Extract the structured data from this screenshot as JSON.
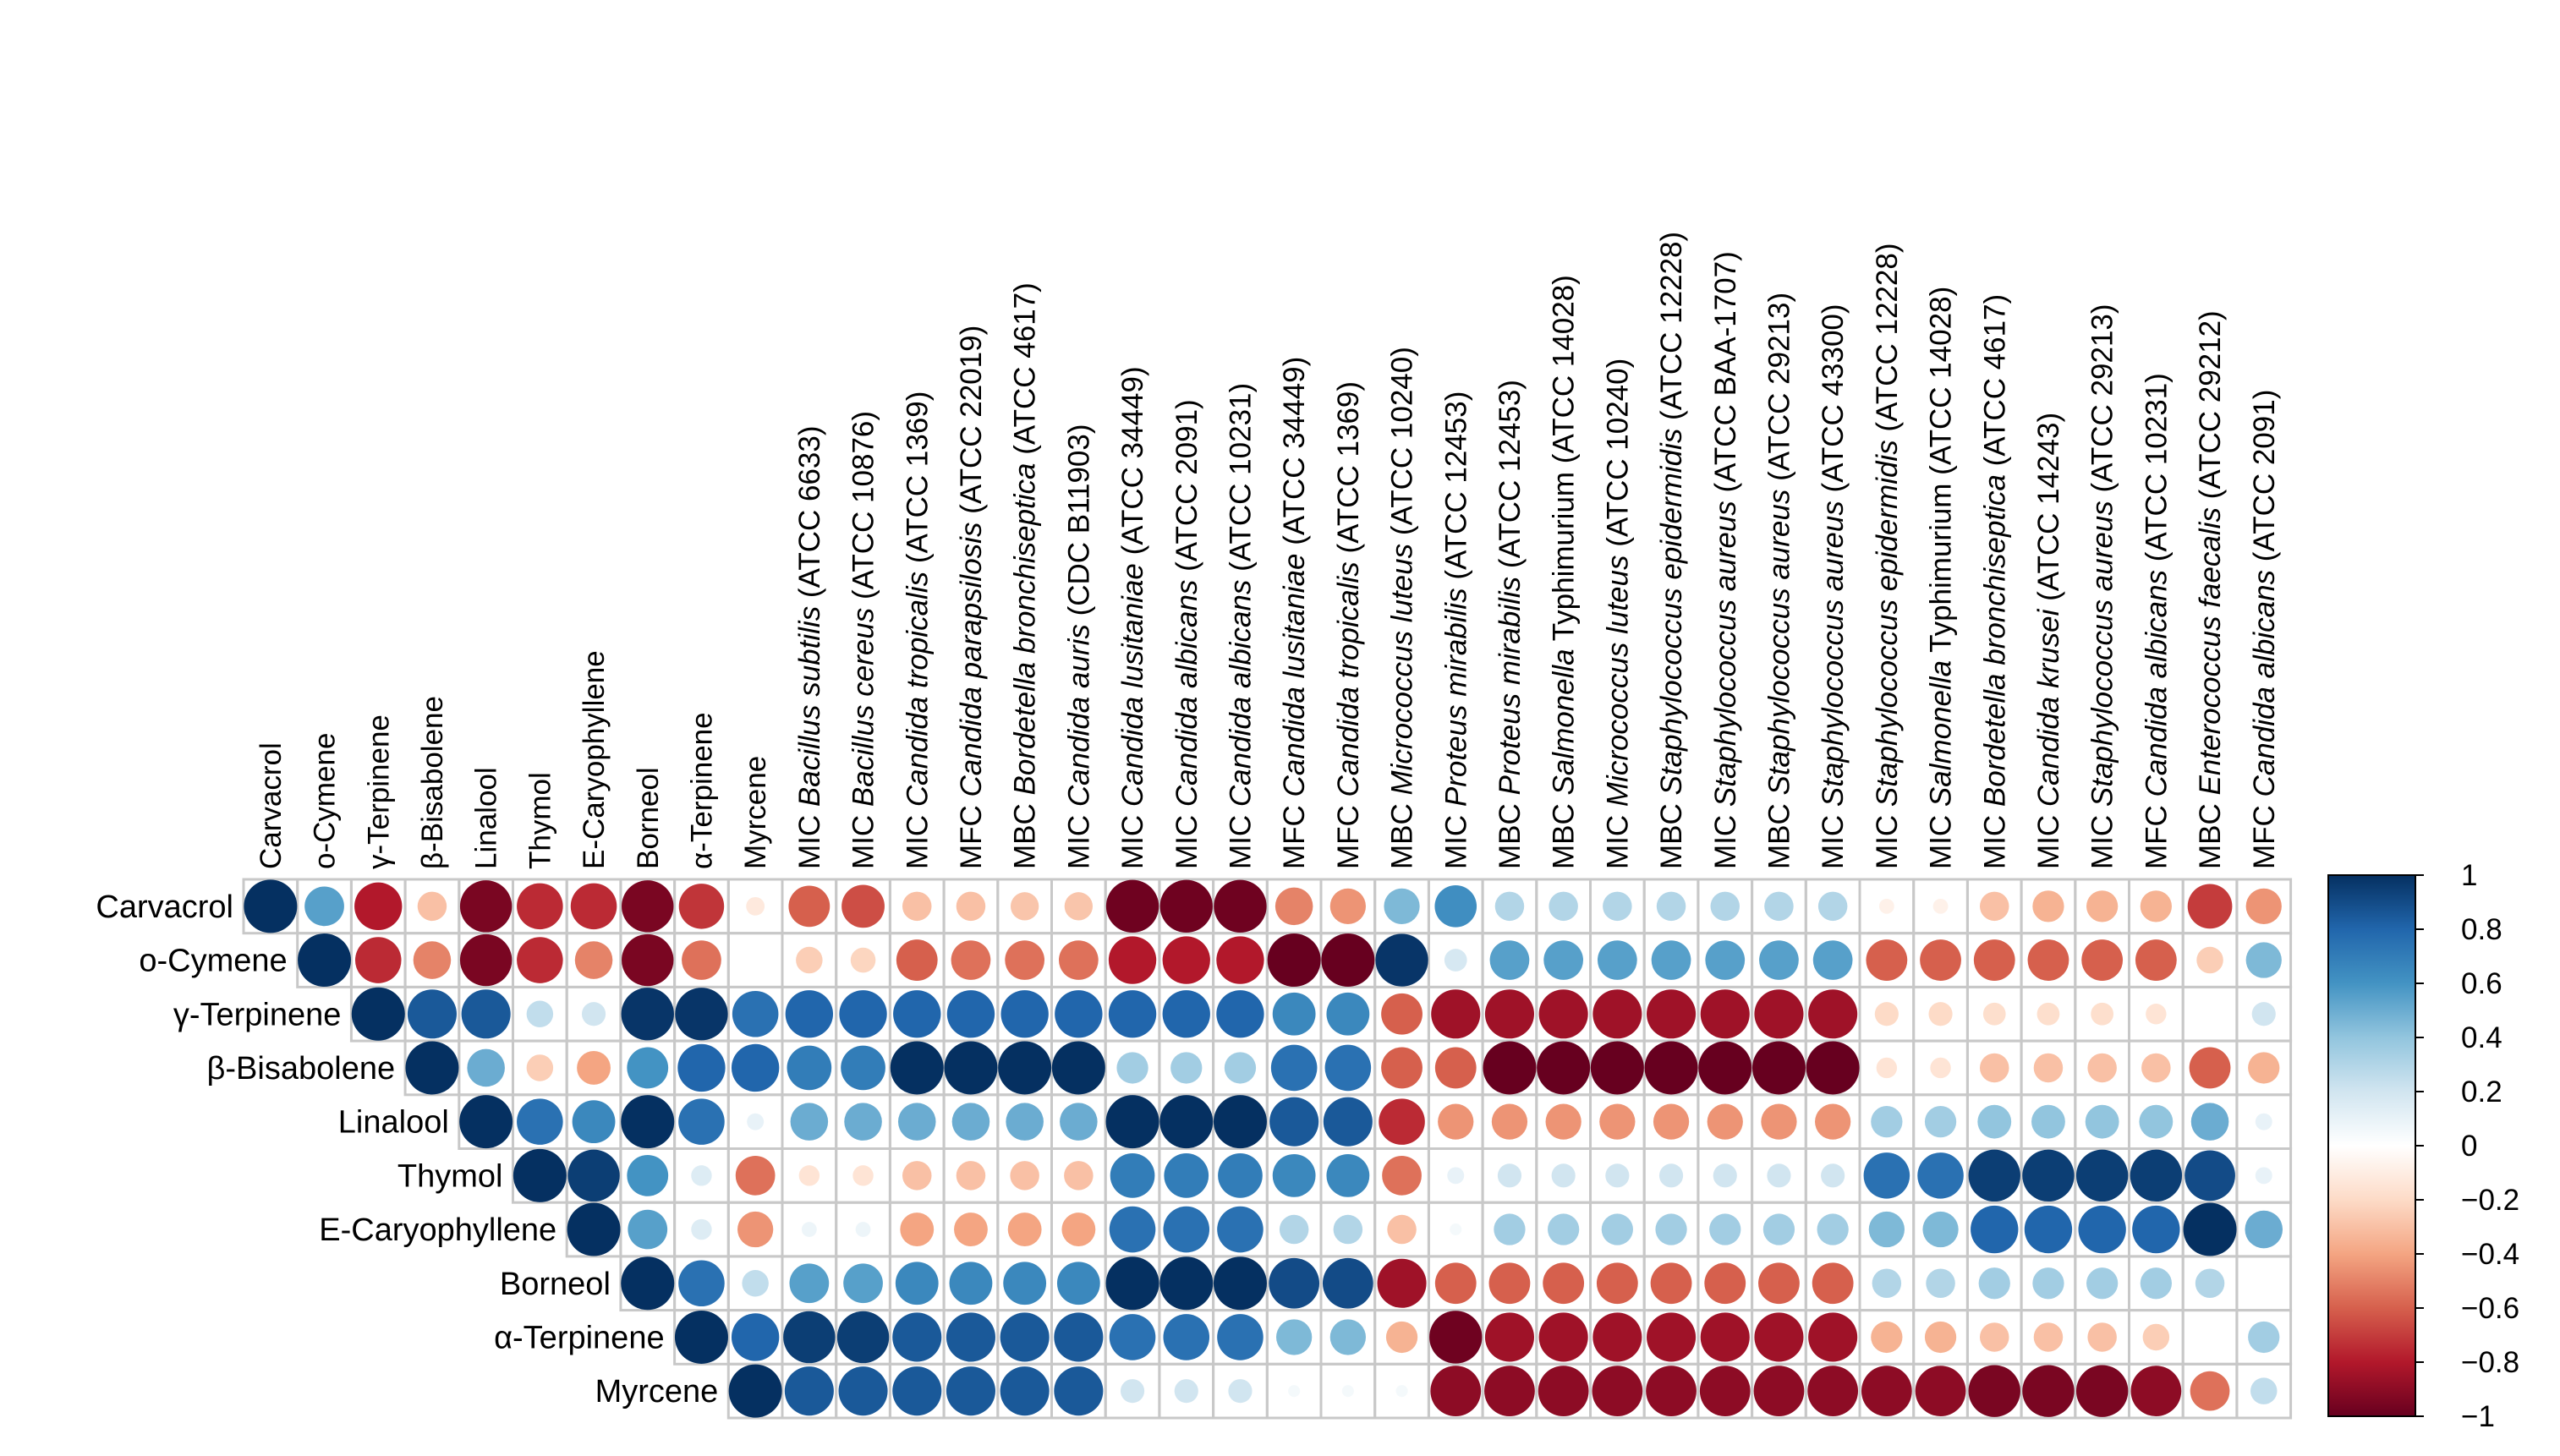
{
  "chart_data": {
    "type": "heatmap",
    "subtype": "correlation-circles",
    "title": "",
    "rows": [
      "Carvacrol",
      "o-Cymene",
      "γ-Terpinene",
      "β-Bisabolene",
      "Linalool",
      "Thymol",
      "E-Caryophyllene",
      "Borneol",
      "α-Terpinene",
      "Myrcene"
    ],
    "columns": [
      [
        {
          "t": "Carvacrol"
        }
      ],
      [
        {
          "t": "o-Cymene"
        }
      ],
      [
        {
          "t": "γ-Terpinene"
        }
      ],
      [
        {
          "t": "β-Bisabolene"
        }
      ],
      [
        {
          "t": "Linalool"
        }
      ],
      [
        {
          "t": "Thymol"
        }
      ],
      [
        {
          "t": "E-Caryophyllene"
        }
      ],
      [
        {
          "t": "Borneol"
        }
      ],
      [
        {
          "t": "α-Terpinene"
        }
      ],
      [
        {
          "t": "Myrcene"
        }
      ],
      [
        {
          "t": "MIC "
        },
        {
          "t": "Bacillus subtilis",
          "i": true
        },
        {
          "t": " (ATCC 6633)"
        }
      ],
      [
        {
          "t": "MIC "
        },
        {
          "t": "Bacillus cereus",
          "i": true
        },
        {
          "t": " (ATCC 10876)"
        }
      ],
      [
        {
          "t": "MIC "
        },
        {
          "t": "Candida tropicalis",
          "i": true
        },
        {
          "t": " (ATCC 1369)"
        }
      ],
      [
        {
          "t": "MFC "
        },
        {
          "t": "Candida parapsilosis",
          "i": true
        },
        {
          "t": " (ATCC 22019)"
        }
      ],
      [
        {
          "t": "MBC "
        },
        {
          "t": "Bordetella bronchiseptica",
          "i": true
        },
        {
          "t": " (ATCC 4617)"
        }
      ],
      [
        {
          "t": "MIC "
        },
        {
          "t": "Candida auris",
          "i": true
        },
        {
          "t": " (CDC B11903)"
        }
      ],
      [
        {
          "t": "MIC "
        },
        {
          "t": "Candida lusitaniae",
          "i": true
        },
        {
          "t": " (ATCC 34449)"
        }
      ],
      [
        {
          "t": "MIC "
        },
        {
          "t": "Candida albicans",
          "i": true
        },
        {
          "t": " (ATCC 2091)"
        }
      ],
      [
        {
          "t": "MIC "
        },
        {
          "t": "Candida albicans",
          "i": true
        },
        {
          "t": " (ATCC 10231)"
        }
      ],
      [
        {
          "t": "MFC "
        },
        {
          "t": "Candida lusitaniae",
          "i": true
        },
        {
          "t": " (ATCC 34449)"
        }
      ],
      [
        {
          "t": "MFC "
        },
        {
          "t": "Candida tropicalis",
          "i": true
        },
        {
          "t": " (ATCC 1369)"
        }
      ],
      [
        {
          "t": "MBC "
        },
        {
          "t": "Micrococcus luteus",
          "i": true
        },
        {
          "t": " (ATCC 10240)"
        }
      ],
      [
        {
          "t": "MIC "
        },
        {
          "t": "Proteus mirabilis",
          "i": true
        },
        {
          "t": " (ATCC 12453)"
        }
      ],
      [
        {
          "t": "MBC "
        },
        {
          "t": "Proteus mirabilis",
          "i": true
        },
        {
          "t": " (ATCC 12453)"
        }
      ],
      [
        {
          "t": "MBC "
        },
        {
          "t": "Salmonella",
          "i": true
        },
        {
          "t": " Typhimurium (ATCC 14028)"
        }
      ],
      [
        {
          "t": "MIC "
        },
        {
          "t": "Micrococcus luteus",
          "i": true
        },
        {
          "t": " (ATCC 10240)"
        }
      ],
      [
        {
          "t": "MBC "
        },
        {
          "t": "Staphylococcus epidermidis",
          "i": true
        },
        {
          "t": " (ATCC 12228)"
        }
      ],
      [
        {
          "t": "MIC "
        },
        {
          "t": "Staphylococcus aureus",
          "i": true
        },
        {
          "t": " (ATCC BAA-1707)"
        }
      ],
      [
        {
          "t": "MBC "
        },
        {
          "t": "Staphylococcus aureus",
          "i": true
        },
        {
          "t": " (ATCC 29213)"
        }
      ],
      [
        {
          "t": "MIC "
        },
        {
          "t": "Staphylococcus aureus",
          "i": true
        },
        {
          "t": " (ATCC 43300)"
        }
      ],
      [
        {
          "t": "MIC "
        },
        {
          "t": "Staphylococcus epidermidis",
          "i": true
        },
        {
          "t": " (ATCC 12228)"
        }
      ],
      [
        {
          "t": "MIC "
        },
        {
          "t": "Salmonella",
          "i": true
        },
        {
          "t": " Typhimurium (ATCC 14028)"
        }
      ],
      [
        {
          "t": "MIC "
        },
        {
          "t": "Bordetella bronchiseptica",
          "i": true
        },
        {
          "t": " (ATCC 4617)"
        }
      ],
      [
        {
          "t": "MIC "
        },
        {
          "t": "Candida krusei",
          "i": true
        },
        {
          "t": " (ATCC 14243)"
        }
      ],
      [
        {
          "t": "MIC "
        },
        {
          "t": "Staphylococcus aureus",
          "i": true
        },
        {
          "t": " (ATCC 29213)"
        }
      ],
      [
        {
          "t": "MFC "
        },
        {
          "t": "Candida albicans",
          "i": true
        },
        {
          "t": " (ATCC 10231)"
        }
      ],
      [
        {
          "t": "MBC "
        },
        {
          "t": "Enterococcus faecalis",
          "i": true
        },
        {
          "t": " (ATCC 29212)"
        }
      ],
      [
        {
          "t": "MFC "
        },
        {
          "t": "Candida albicans",
          "i": true
        },
        {
          "t": " (ATCC 2091)"
        }
      ]
    ],
    "values": [
      [
        1.0,
        0.55,
        -0.8,
        -0.3,
        -0.95,
        -0.75,
        -0.75,
        -0.95,
        -0.72,
        -0.12,
        -0.6,
        -0.65,
        -0.3,
        -0.3,
        -0.28,
        -0.28,
        -0.98,
        -0.98,
        -0.98,
        -0.5,
        -0.45,
        0.45,
        0.62,
        0.3,
        0.3,
        0.3,
        0.3,
        0.3,
        0.3,
        0.3,
        -0.08,
        -0.08,
        -0.3,
        -0.35,
        -0.35,
        -0.35,
        -0.7,
        -0.45
      ],
      [
        null,
        1.0,
        -0.75,
        -0.5,
        -0.95,
        -0.75,
        -0.5,
        -0.95,
        -0.55,
        0.0,
        -0.25,
        -0.22,
        -0.6,
        -0.55,
        -0.55,
        -0.55,
        -0.8,
        -0.8,
        -0.8,
        -1.0,
        -1.0,
        0.98,
        0.18,
        0.55,
        0.55,
        0.55,
        0.55,
        0.55,
        0.55,
        0.55,
        -0.6,
        -0.6,
        -0.6,
        -0.6,
        -0.6,
        -0.6,
        -0.25,
        0.45
      ],
      [
        null,
        null,
        1.0,
        0.85,
        0.85,
        0.25,
        0.2,
        0.98,
        0.98,
        0.75,
        0.8,
        0.8,
        0.8,
        0.8,
        0.8,
        0.8,
        0.8,
        0.8,
        0.8,
        0.65,
        0.65,
        -0.6,
        -0.85,
        -0.85,
        -0.85,
        -0.85,
        -0.85,
        -0.85,
        -0.85,
        -0.85,
        -0.2,
        -0.2,
        -0.18,
        -0.18,
        -0.18,
        -0.15,
        0.0,
        0.2
      ],
      [
        null,
        null,
        null,
        1.0,
        0.5,
        -0.25,
        -0.4,
        0.6,
        0.8,
        0.8,
        0.7,
        0.7,
        1.0,
        1.0,
        1.0,
        1.0,
        0.35,
        0.35,
        0.35,
        0.75,
        0.75,
        -0.6,
        -0.6,
        -1.0,
        -1.0,
        -1.0,
        -1.0,
        -1.0,
        -1.0,
        -1.0,
        -0.15,
        -0.15,
        -0.3,
        -0.3,
        -0.3,
        -0.3,
        -0.6,
        -0.35
      ],
      [
        null,
        null,
        null,
        null,
        1.0,
        0.75,
        0.65,
        1.0,
        0.75,
        0.1,
        0.5,
        0.5,
        0.5,
        0.5,
        0.5,
        0.5,
        1.0,
        1.0,
        1.0,
        0.85,
        0.85,
        -0.75,
        -0.45,
        -0.45,
        -0.45,
        -0.45,
        -0.45,
        -0.45,
        -0.45,
        -0.45,
        0.35,
        0.35,
        0.4,
        0.4,
        0.4,
        0.4,
        0.5,
        0.1
      ],
      [
        null,
        null,
        null,
        null,
        null,
        1.0,
        0.95,
        0.6,
        0.15,
        -0.55,
        -0.15,
        -0.15,
        -0.3,
        -0.3,
        -0.3,
        -0.3,
        0.7,
        0.7,
        0.7,
        0.65,
        0.65,
        -0.55,
        0.1,
        0.2,
        0.2,
        0.2,
        0.2,
        0.2,
        0.2,
        0.2,
        0.75,
        0.75,
        0.95,
        0.95,
        0.95,
        0.95,
        0.9,
        0.1
      ],
      [
        null,
        null,
        null,
        null,
        null,
        null,
        1.0,
        0.55,
        0.15,
        -0.45,
        0.08,
        0.08,
        -0.4,
        -0.4,
        -0.4,
        -0.4,
        0.75,
        0.75,
        0.75,
        0.3,
        0.3,
        -0.3,
        0.05,
        0.35,
        0.35,
        0.35,
        0.35,
        0.35,
        0.35,
        0.35,
        0.45,
        0.45,
        0.8,
        0.8,
        0.8,
        0.8,
        1.0,
        0.5
      ],
      [
        null,
        null,
        null,
        null,
        null,
        null,
        null,
        1.0,
        0.75,
        0.25,
        0.55,
        0.55,
        0.65,
        0.65,
        0.65,
        0.65,
        1.0,
        1.0,
        1.0,
        0.9,
        0.9,
        -0.85,
        -0.6,
        -0.6,
        -0.6,
        -0.6,
        -0.6,
        -0.6,
        -0.6,
        -0.6,
        0.3,
        0.3,
        0.35,
        0.35,
        0.35,
        0.35,
        0.3,
        0.0
      ],
      [
        null,
        null,
        null,
        null,
        null,
        null,
        null,
        null,
        1.0,
        0.8,
        0.95,
        0.95,
        0.85,
        0.85,
        0.85,
        0.85,
        0.75,
        0.75,
        0.75,
        0.45,
        0.45,
        -0.35,
        -0.98,
        -0.85,
        -0.85,
        -0.85,
        -0.85,
        -0.85,
        -0.85,
        -0.85,
        -0.35,
        -0.35,
        -0.3,
        -0.3,
        -0.3,
        -0.25,
        0.0,
        0.35
      ],
      [
        null,
        null,
        null,
        null,
        null,
        null,
        null,
        null,
        null,
        1.0,
        0.85,
        0.85,
        0.85,
        0.85,
        0.85,
        0.85,
        0.2,
        0.2,
        0.2,
        0.05,
        0.05,
        0.05,
        -0.9,
        -0.9,
        -0.9,
        -0.9,
        -0.9,
        -0.9,
        -0.9,
        -0.9,
        -0.9,
        -0.9,
        -0.95,
        -0.95,
        -0.95,
        -0.9,
        -0.55,
        0.25
      ]
    ],
    "colorbar": {
      "ticks": [
        "1",
        "0.8",
        "0.6",
        "0.4",
        "0.2",
        "0",
        "−0.2",
        "−0.4",
        "−0.6",
        "−0.8",
        "−1"
      ],
      "range": [
        -1,
        1
      ],
      "colors": [
        "#67001F",
        "#B2182B",
        "#D6604D",
        "#F4A582",
        "#FDDBC7",
        "#FFFFFF",
        "#D1E5F0",
        "#92C5DE",
        "#4393C3",
        "#2166AC",
        "#053061"
      ]
    }
  }
}
